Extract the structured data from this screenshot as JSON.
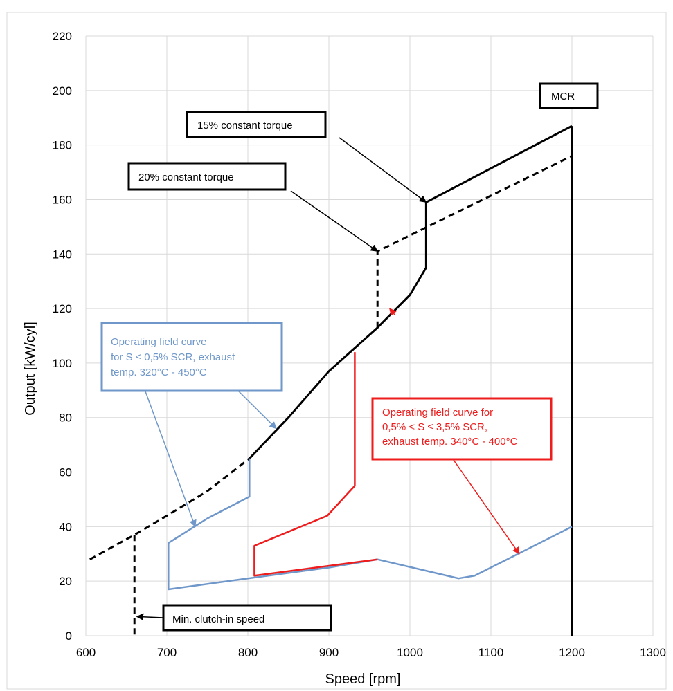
{
  "chart_data": {
    "type": "line",
    "xlabel": "Speed [rpm]",
    "ylabel": "Output [kW/cyl]",
    "xlim": [
      600,
      1300
    ],
    "ylim": [
      0,
      220
    ],
    "x_ticks": [
      "600",
      "700",
      "800",
      "900",
      "1000",
      "1100",
      "1200",
      "1300"
    ],
    "y_ticks": [
      "0",
      "20",
      "40",
      "60",
      "80",
      "100",
      "120",
      "140",
      "160",
      "180",
      "200",
      "220"
    ],
    "grid": true,
    "colors": {
      "black": "#000000",
      "blue": "#6f97c9",
      "red": "#ee1c1c"
    },
    "series": [
      {
        "style": "dashed",
        "color": "black",
        "points": [
          [
            605,
            28
          ],
          [
            660,
            37
          ],
          [
            700,
            44
          ],
          [
            750,
            53
          ],
          [
            802,
            65
          ]
        ]
      },
      {
        "style": "solid",
        "color": "black",
        "points": [
          [
            802,
            65
          ],
          [
            850,
            80
          ],
          [
            900,
            97
          ],
          [
            960,
            113
          ],
          [
            1000,
            125
          ],
          [
            1020,
            135
          ],
          [
            1020,
            159
          ],
          [
            1200,
            187
          ]
        ]
      },
      {
        "style": "dashed",
        "color": "black",
        "points": [
          [
            960,
            113
          ],
          [
            960,
            141
          ],
          [
            1200,
            176
          ]
        ]
      },
      {
        "style": "dashed",
        "color": "black",
        "points": [
          [
            660,
            37
          ],
          [
            660,
            0
          ]
        ]
      },
      {
        "style": "solid",
        "color": "black",
        "points": [
          [
            1200,
            187
          ],
          [
            1200,
            0
          ]
        ]
      },
      {
        "style": "solid",
        "color": "blue",
        "points": [
          [
            802,
            65
          ],
          [
            802,
            51
          ],
          [
            750,
            43
          ],
          [
            702,
            34
          ],
          [
            702,
            17
          ],
          [
            800,
            21
          ],
          [
            900,
            25
          ],
          [
            960,
            28
          ],
          [
            1060,
            21
          ],
          [
            1080,
            22
          ],
          [
            1200,
            40
          ]
        ]
      },
      {
        "style": "solid",
        "color": "red",
        "points": [
          [
            932,
            104
          ],
          [
            932,
            55
          ],
          [
            898,
            44
          ],
          [
            808,
            33
          ],
          [
            808,
            22
          ],
          [
            960,
            28
          ]
        ]
      }
    ],
    "annotations": [
      {
        "id": "mcr",
        "text_lines": [
          "MCR"
        ],
        "color": "black"
      },
      {
        "id": "torque15",
        "text_lines": [
          "15% constant torque"
        ],
        "color": "black",
        "arrow_to": [
          1020,
          159
        ]
      },
      {
        "id": "torque20",
        "text_lines": [
          "20% constant torque"
        ],
        "color": "black",
        "arrow_to": [
          960,
          141
        ]
      },
      {
        "id": "blue_box",
        "text_lines": [
          "Operating field curve",
          "for S ≤ 0,5% SCR, exhaust",
          "temp. 320°C - 450°C"
        ],
        "color": "blue",
        "arrows_to": [
          [
            735,
            40
          ],
          [
            835,
            76
          ]
        ]
      },
      {
        "id": "red_box",
        "text_lines": [
          "Operating field curve for",
          "0,5% < S ≤ 3,5% SCR,",
          "exhaust temp. 340°C - 400°C"
        ],
        "color": "red",
        "arrows_to": [
          [
            975,
            120
          ],
          [
            1135,
            30
          ]
        ]
      },
      {
        "id": "clutch",
        "text_lines": [
          "Min. clutch-in speed"
        ],
        "color": "black",
        "arrow_to": [
          663,
          7
        ]
      }
    ]
  }
}
